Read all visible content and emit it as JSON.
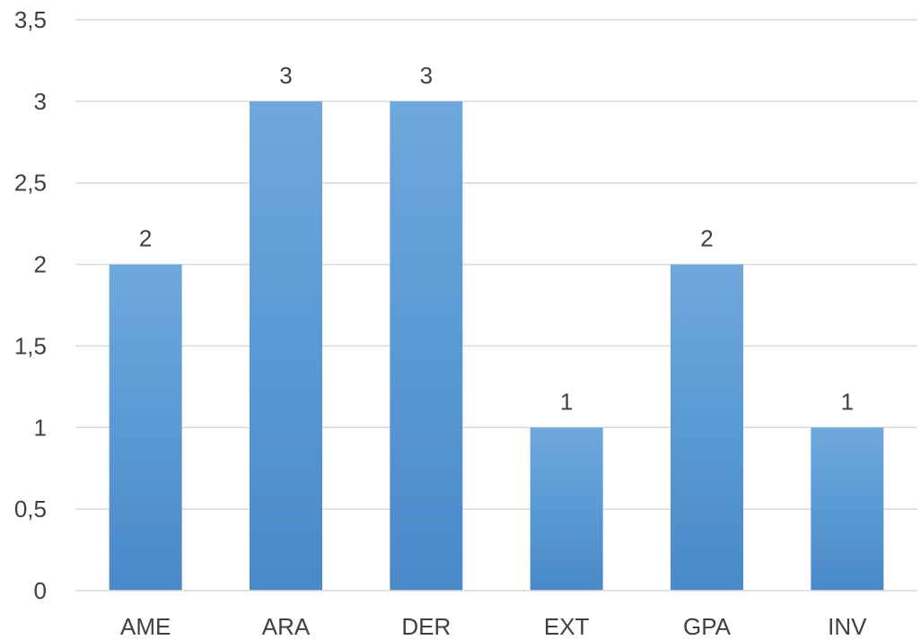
{
  "chart_data": {
    "type": "bar",
    "categories": [
      "AME",
      "ARA",
      "DER",
      "EXT",
      "GPA",
      "INV"
    ],
    "values": [
      2,
      3,
      3,
      1,
      2,
      1
    ],
    "value_labels": [
      "2",
      "3",
      "3",
      "1",
      "2",
      "1"
    ],
    "y_ticks": [
      0,
      0.5,
      1,
      1.5,
      2,
      2.5,
      3,
      3.5
    ],
    "y_tick_labels": [
      "0",
      "0,5",
      "1",
      "1,5",
      "2",
      "2,5",
      "3",
      "3,5"
    ],
    "ylim": [
      0,
      3.5
    ],
    "grid": true,
    "legend": "none",
    "bar_color_top": "#6fa8dc",
    "bar_color_mid": "#5b9bd5",
    "bar_color_bottom": "#4a89c8"
  }
}
